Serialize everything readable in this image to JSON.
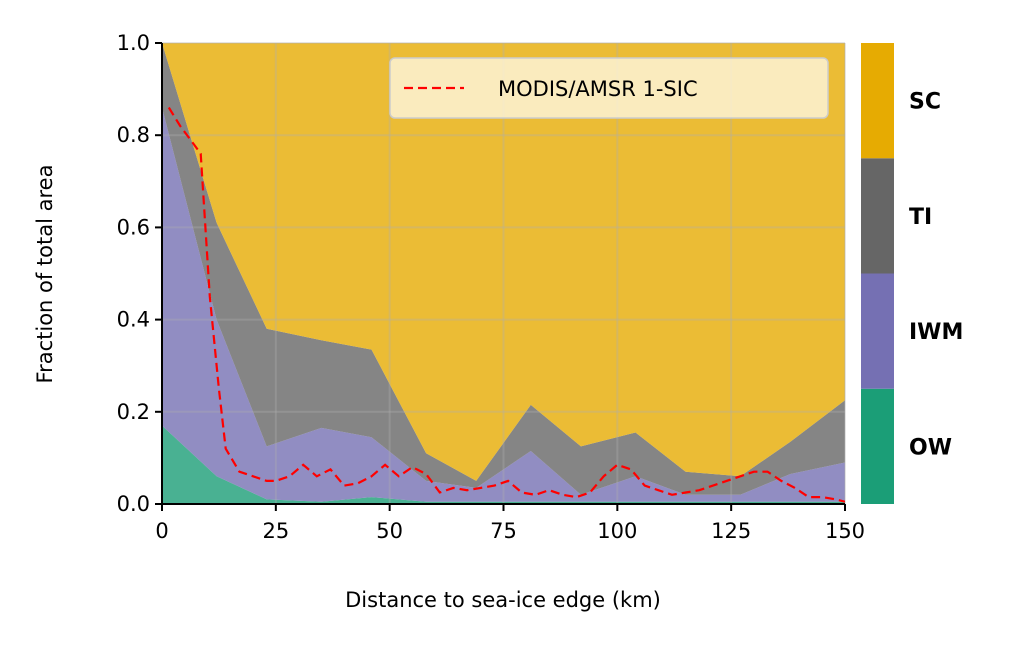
{
  "chart_data": {
    "type": "area",
    "xlabel": "Distance to sea-ice edge (km)",
    "ylabel": "Fraction of total area",
    "xlim": [
      0,
      150
    ],
    "ylim": [
      0,
      1
    ],
    "xticks": [
      0,
      25,
      50,
      75,
      100,
      125,
      150
    ],
    "yticks": [
      0.0,
      0.2,
      0.4,
      0.6,
      0.8,
      1.0
    ],
    "xtick_labels": [
      "0",
      "25",
      "50",
      "75",
      "100",
      "125",
      "150"
    ],
    "ytick_labels": [
      "0.0",
      "0.2",
      "0.4",
      "0.6",
      "0.8",
      "1.0"
    ],
    "grid": true,
    "legend_placement": "top-right",
    "x": [
      0,
      12,
      23,
      35,
      46,
      58,
      69,
      81,
      92,
      104,
      115,
      127,
      138,
      150
    ],
    "stacked_series": [
      {
        "key": "OW",
        "color": "#1b9e77",
        "values": [
          0.17,
          0.06,
          0.01,
          0.005,
          0.015,
          0.005,
          0.005,
          0.005,
          0.005,
          0.005,
          0.005,
          0.005,
          0.005,
          0.005
        ]
      },
      {
        "key": "IWM",
        "color": "#7570b3",
        "values": [
          0.69,
          0.34,
          0.115,
          0.16,
          0.13,
          0.045,
          0.03,
          0.11,
          0.015,
          0.055,
          0.015,
          0.015,
          0.06,
          0.085
        ]
      },
      {
        "key": "TI",
        "color": "#666666",
        "values": [
          0.14,
          0.21,
          0.255,
          0.19,
          0.19,
          0.06,
          0.015,
          0.1,
          0.105,
          0.095,
          0.05,
          0.04,
          0.07,
          0.135
        ]
      },
      {
        "key": "SC",
        "color": "#e6ab02",
        "values": [
          0.0,
          0.39,
          0.62,
          0.645,
          0.665,
          0.89,
          0.95,
          0.785,
          0.875,
          0.845,
          0.93,
          0.94,
          0.865,
          0.775
        ]
      }
    ],
    "line_series": {
      "name": "MODIS/AMSR 1-SIC",
      "color": "#ff0000",
      "x": [
        1.5,
        4,
        7,
        8.5,
        10.5,
        12.5,
        14,
        17,
        20,
        23,
        25,
        28,
        31,
        34,
        37,
        40,
        43,
        46,
        49,
        52,
        55,
        58,
        61,
        64,
        67,
        70,
        73,
        76,
        79,
        82,
        85,
        88,
        91,
        94,
        97,
        100,
        103,
        106,
        109,
        112,
        115,
        118,
        121,
        124,
        127,
        130,
        133,
        136,
        139,
        142,
        145,
        148,
        150
      ],
      "y": [
        0.86,
        0.82,
        0.78,
        0.76,
        0.45,
        0.25,
        0.12,
        0.07,
        0.06,
        0.05,
        0.05,
        0.06,
        0.085,
        0.06,
        0.075,
        0.04,
        0.045,
        0.06,
        0.085,
        0.06,
        0.08,
        0.065,
        0.025,
        0.035,
        0.03,
        0.035,
        0.04,
        0.05,
        0.025,
        0.02,
        0.03,
        0.02,
        0.015,
        0.025,
        0.06,
        0.085,
        0.075,
        0.04,
        0.03,
        0.02,
        0.025,
        0.03,
        0.04,
        0.05,
        0.06,
        0.07,
        0.07,
        0.05,
        0.035,
        0.015,
        0.015,
        0.01,
        0.005
      ]
    },
    "colorbar": {
      "categories": [
        "OW",
        "IWM",
        "TI",
        "SC"
      ],
      "colors": [
        "#1b9e77",
        "#7570b3",
        "#666666",
        "#e6ab02"
      ]
    }
  }
}
